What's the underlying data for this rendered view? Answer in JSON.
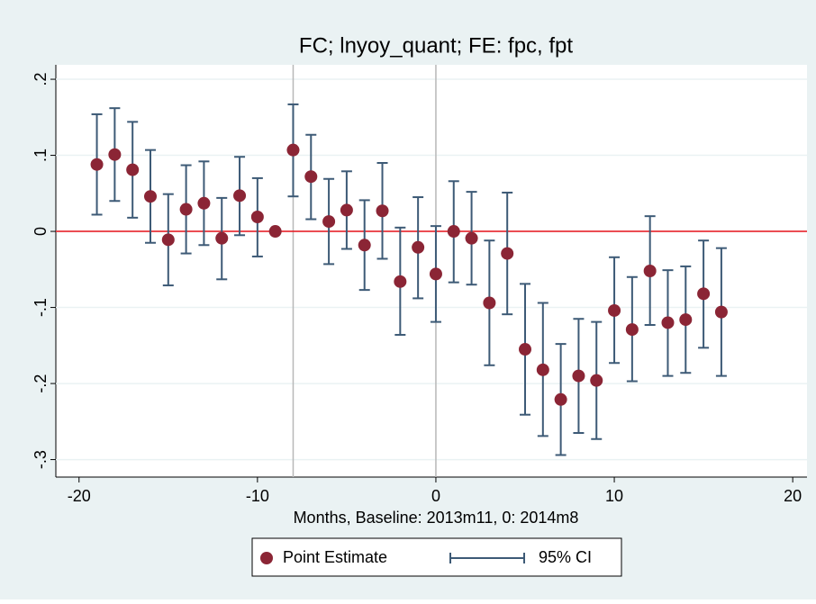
{
  "chart_data": {
    "type": "scatter-ci",
    "title": "FC; lnyoy_quant; FE: fpc, fpt",
    "x_label": "Months, Baseline: 2013m11, 0: 2014m8",
    "x": [
      -19,
      -18,
      -17,
      -16,
      -15,
      -14,
      -13,
      -12,
      -11,
      -10,
      -9,
      -8,
      -7,
      -6,
      -5,
      -4,
      -3,
      -2,
      -1,
      0,
      1,
      2,
      3,
      4,
      5,
      6,
      7,
      8,
      9,
      10,
      11,
      12,
      13,
      14,
      15,
      16
    ],
    "series": [
      {
        "name": "Point Estimate",
        "color": "#8b2535",
        "values": [
          0.088,
          0.101,
          0.081,
          0.046,
          -0.011,
          0.029,
          0.037,
          -0.009,
          0.047,
          0.019,
          0,
          0.107,
          0.072,
          0.013,
          0.028,
          -0.018,
          0.027,
          -0.066,
          -0.021,
          -0.056,
          0,
          -0.009,
          -0.094,
          -0.029,
          -0.155,
          -0.182,
          -0.221,
          -0.19,
          -0.196,
          -0.104,
          -0.129,
          -0.052,
          -0.12,
          -0.116,
          -0.082,
          -0.106
        ]
      },
      {
        "name": "95% CI",
        "color": "#3d5a76",
        "lower": [
          0.022,
          0.04,
          0.018,
          -0.015,
          -0.071,
          -0.029,
          -0.018,
          -0.063,
          -0.005,
          -0.033,
          null,
          0.046,
          0.016,
          -0.043,
          -0.023,
          -0.077,
          -0.036,
          -0.136,
          -0.088,
          -0.119,
          -0.067,
          -0.07,
          -0.176,
          -0.109,
          -0.241,
          -0.269,
          -0.294,
          -0.265,
          -0.273,
          -0.173,
          -0.197,
          -0.123,
          -0.19,
          -0.186,
          -0.153,
          -0.19
        ],
        "upper": [
          0.154,
          0.162,
          0.144,
          0.107,
          0.049,
          0.087,
          0.092,
          0.044,
          0.098,
          0.07,
          null,
          0.167,
          0.127,
          0.069,
          0.079,
          0.041,
          0.09,
          0.005,
          0.045,
          0.007,
          0.066,
          0.052,
          -0.012,
          0.051,
          -0.069,
          -0.094,
          -0.148,
          -0.115,
          -0.119,
          -0.034,
          -0.06,
          0.02,
          -0.051,
          -0.046,
          -0.012,
          -0.022
        ]
      }
    ],
    "xlim": [
      -21.3,
      20.8
    ],
    "xticks": [
      -20,
      -10,
      0,
      10,
      20
    ],
    "ylim": [
      -0.323,
      0.219
    ],
    "yticks": [
      {
        "value": 0.2,
        "label": ".2"
      },
      {
        "value": 0.1,
        "label": ".1"
      },
      0,
      {
        "value": -0.1,
        "label": "-.1"
      },
      {
        "value": -0.2,
        "label": "-.2"
      },
      {
        "value": -0.3,
        "label": "-.3"
      }
    ],
    "grid": true,
    "xlines": [
      -8,
      0
    ],
    "xline_color": "#b8b8b8",
    "yline": 0,
    "yline_color": "#e8141c",
    "legend": "bottom"
  }
}
